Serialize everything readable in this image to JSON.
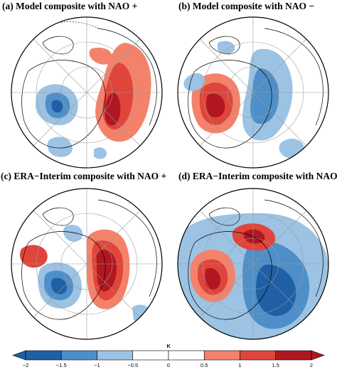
{
  "panels": [
    {
      "id": "a",
      "title": "(a) Model composite with NAO +"
    },
    {
      "id": "b",
      "title": "(b) Model composite with NAO −"
    },
    {
      "id": "c",
      "title": "(c) ERA−Interim composite with NAO +"
    },
    {
      "id": "d",
      "title": "(d) ERA−Interim composite with NAO −"
    }
  ],
  "colorbar": {
    "unit": "K",
    "ticks": [
      "−2",
      "−1.5",
      "−1",
      "−0.5",
      "0",
      "0.5",
      "1",
      "1.5",
      "2"
    ],
    "levels": [
      -2,
      -1.5,
      -1,
      -0.5,
      0,
      0.5,
      1,
      1.5,
      2
    ],
    "colors": [
      "#1f5fa6",
      "#4e8fc9",
      "#9cc3e3",
      "#ffffff",
      "#ffffff",
      "#f4826b",
      "#e0453b",
      "#b01721"
    ],
    "extend_low_color": "#1f5fa6",
    "extend_high_color": "#b01721"
  },
  "palette": {
    "strong_warm": "#b01721",
    "mid_warm": "#e0453b",
    "weak_warm": "#f4826b",
    "weak_cool": "#9cc3e3",
    "mid_cool": "#4e8fc9",
    "strong_cool": "#1f5fa6"
  }
}
